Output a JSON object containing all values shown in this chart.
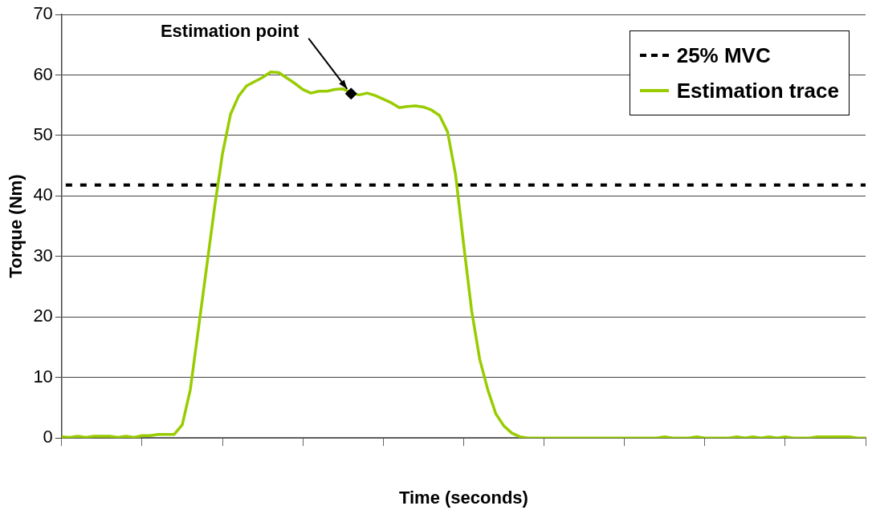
{
  "chart_data": {
    "type": "line",
    "xlabel": "Time (seconds)",
    "ylabel": "Torque (Nm)",
    "categories": [
      null,
      null,
      null,
      null,
      null,
      null,
      null,
      null,
      null,
      null,
      null,
      null,
      null,
      null,
      null,
      null,
      null,
      null,
      null,
      null,
      null,
      null,
      null,
      null,
      null,
      null,
      null,
      null,
      null,
      null,
      null,
      null,
      null,
      null,
      null,
      null,
      null,
      null,
      null,
      null,
      null,
      null,
      null,
      null,
      null,
      null,
      null,
      null,
      null,
      null,
      null,
      null,
      null,
      null,
      null,
      null,
      null,
      null,
      null,
      null,
      null,
      null,
      null,
      null,
      null,
      null,
      null,
      null,
      null,
      null,
      null,
      null,
      null,
      null,
      null,
      null,
      null,
      null,
      null,
      null,
      null,
      null,
      null,
      null,
      null,
      null,
      null,
      null,
      null,
      null,
      null,
      null,
      null,
      null,
      null,
      null,
      null,
      null,
      null,
      null,
      null
    ],
    "series": [
      {
        "name": "Estimation trace",
        "type": "line",
        "color": "#99cc00",
        "values": [
          0.2,
          0.1,
          0.3,
          0.1,
          0.3,
          0.3,
          0.3,
          0.1,
          0.3,
          0.1,
          0.4,
          0.4,
          0.6,
          0.6,
          0.6,
          2.2,
          8,
          18,
          28,
          38,
          47,
          53.5,
          56.5,
          58.2,
          58.9,
          59.6,
          60.5,
          60.4,
          59.5,
          58.6,
          57.6,
          57,
          57.3,
          57.3,
          57.6,
          57.7,
          57,
          56.7,
          57,
          56.6,
          56,
          55.4,
          54.6,
          54.8,
          54.9,
          54.7,
          54.2,
          53.3,
          50.6,
          43.5,
          32,
          21,
          13,
          8,
          4,
          2,
          0.8,
          0.2,
          0,
          0,
          0,
          0,
          0,
          0,
          0,
          0,
          0,
          0,
          0,
          0,
          0,
          0,
          0,
          0,
          0,
          0.2,
          0,
          0,
          0,
          0.2,
          0,
          0,
          0,
          0,
          0.2,
          0,
          0.2,
          0,
          0.2,
          0,
          0.2,
          0,
          0,
          0,
          0.2,
          0.2,
          0.2,
          0.2,
          0.2,
          0,
          0
        ]
      },
      {
        "type": "scatter",
        "marker": "diamond",
        "color": "#000000",
        "values": [
          null,
          null,
          null,
          null,
          null,
          null,
          null,
          null,
          null,
          null,
          null,
          null,
          null,
          null,
          null,
          null,
          null,
          null,
          null,
          null,
          null,
          null,
          null,
          null,
          null,
          null,
          null,
          null,
          null,
          null,
          null,
          null,
          null,
          null,
          null,
          null,
          56.9,
          null,
          null,
          null,
          null,
          null,
          null,
          null,
          null,
          null,
          null,
          null,
          null,
          null,
          null,
          null,
          null,
          null,
          null,
          null,
          null,
          null,
          null,
          null,
          null,
          null,
          null,
          null,
          null,
          null,
          null,
          null,
          null,
          null,
          null,
          null,
          null,
          null,
          null,
          null,
          null,
          null,
          null,
          null,
          null,
          null,
          null,
          null,
          null,
          null,
          null,
          null,
          null,
          null,
          null,
          null,
          null,
          null,
          null,
          null,
          null,
          null,
          null,
          null,
          null
        ]
      }
    ],
    "ylim": [
      0,
      70
    ],
    "yticks": [
      0,
      10,
      20,
      30,
      40,
      50,
      60,
      70
    ],
    "grid": "y",
    "legend": "top right",
    "ref_lines": [
      {
        "axis": "y",
        "value": 41.8,
        "label": "25% MVC",
        "color": "#000000",
        "line_style": "dashed"
      }
    ],
    "annotations": [
      "Estimation point"
    ]
  }
}
